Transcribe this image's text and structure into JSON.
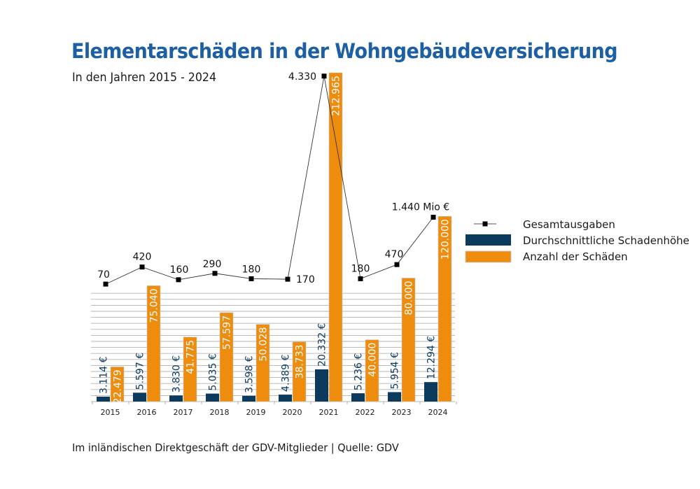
{
  "header": {
    "title": "Elementarschäden in der Wohngebäudeversicherung",
    "subtitle": "In den Jahren 2015 - 2024"
  },
  "footer": {
    "source": "Im inländischen Direktgeschäft der GDV-Mitglieder | Quelle: GDV"
  },
  "colors": {
    "title": "#1d5fa3",
    "navy": "#0b3a5c",
    "orange": "#ee8c0e",
    "line": "#333333",
    "marker": "#000000",
    "grid": "#b3b3b3"
  },
  "chart_data": {
    "type": "bar",
    "title": "Elementarschäden in der Wohngebäudeversicherung",
    "subtitle": "In den Jahren 2015 - 2024",
    "xlabel": "",
    "ylabel": "",
    "categories": [
      "2015",
      "2016",
      "2017",
      "2018",
      "2019",
      "2020",
      "2021",
      "2022",
      "2023",
      "2024"
    ],
    "grid": true,
    "legend_position": "right",
    "series": [
      {
        "name": "Durchschnittliche Schadenhöhe",
        "type": "bar",
        "values": [
          3114,
          5597,
          3830,
          5035,
          3598,
          4389,
          20332,
          5236,
          5954,
          12294
        ],
        "labels": [
          "3.114 €",
          "5.597 €",
          "3.830 €",
          "5.035 €",
          "3.598 €",
          "4.389 €",
          "20.332 €",
          "5.236 €",
          "5.954 €",
          "12.294 €"
        ]
      },
      {
        "name": "Anzahl der Schäden",
        "type": "bar",
        "values": [
          22479,
          75040,
          41775,
          57597,
          50028,
          38733,
          212965,
          40000,
          80000,
          120000
        ],
        "labels": [
          "22.479",
          "75.040",
          "41.775",
          "57.597",
          "50.028",
          "38.733",
          "212.965",
          "40.000",
          "80.000",
          "120.000"
        ]
      },
      {
        "name": "Gesamtausgaben",
        "type": "line",
        "unit": "Mio €",
        "values": [
          70,
          420,
          160,
          290,
          180,
          170,
          4330,
          180,
          470,
          1440
        ],
        "labels": [
          "70",
          "420",
          "160",
          "290",
          "180",
          "170",
          "4.330",
          "180",
          "470",
          "1.440 Mio €"
        ]
      }
    ],
    "legend": [
      "Gesamtausgaben",
      "Durchschnittliche Schadenhöhe",
      "Anzahl der Schäden"
    ]
  }
}
